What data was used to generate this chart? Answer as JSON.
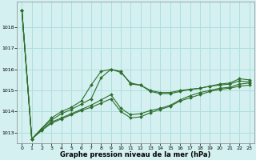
{
  "xlabel": "Graphe pression niveau de la mer (hPa)",
  "ylabel": "",
  "xlim": [
    -0.5,
    23.5
  ],
  "ylim": [
    1012.5,
    1019.2
  ],
  "yticks": [
    1013,
    1014,
    1015,
    1016,
    1017,
    1018
  ],
  "xticks": [
    0,
    1,
    2,
    3,
    4,
    5,
    6,
    7,
    8,
    9,
    10,
    11,
    12,
    13,
    14,
    15,
    16,
    17,
    18,
    19,
    20,
    21,
    22,
    23
  ],
  "bg_color": "#d4f0f0",
  "grid_color": "#b0dede",
  "line_color": "#2d6e2d",
  "series": [
    {
      "x": [
        0,
        1,
        2,
        3,
        4,
        5,
        6,
        7,
        8,
        9,
        10,
        11,
        12,
        13,
        14,
        15,
        16,
        17,
        18,
        19,
        20,
        21,
        22,
        23
      ],
      "y": [
        1018.8,
        1012.7,
        1013.2,
        1013.7,
        1014.0,
        1014.2,
        1014.5,
        1015.25,
        1015.9,
        1016.0,
        1015.9,
        1015.3,
        1015.25,
        1015.0,
        1014.9,
        1014.9,
        1015.0,
        1015.05,
        1015.1,
        1015.2,
        1015.3,
        1015.35,
        1015.55,
        1015.5
      ]
    },
    {
      "x": [
        0,
        1,
        2,
        3,
        4,
        5,
        6,
        7,
        8,
        9,
        10,
        11,
        12,
        13,
        14,
        15,
        16,
        17,
        18,
        19,
        20,
        21,
        22,
        23
      ],
      "y": [
        1018.8,
        1012.7,
        1013.2,
        1013.6,
        1013.9,
        1014.1,
        1014.35,
        1014.6,
        1015.6,
        1016.0,
        1015.85,
        1015.35,
        1015.25,
        1014.95,
        1014.85,
        1014.85,
        1014.95,
        1015.05,
        1015.1,
        1015.2,
        1015.25,
        1015.3,
        1015.45,
        1015.4
      ]
    },
    {
      "x": [
        0,
        1,
        2,
        3,
        4,
        5,
        6,
        7,
        8,
        9,
        10,
        11,
        12,
        13,
        14,
        15,
        16,
        17,
        18,
        19,
        20,
        21,
        22,
        23
      ],
      "y": [
        1018.8,
        1012.7,
        1013.15,
        1013.5,
        1013.7,
        1013.9,
        1014.1,
        1014.3,
        1014.55,
        1014.8,
        1014.15,
        1013.85,
        1013.9,
        1014.05,
        1014.15,
        1014.3,
        1014.55,
        1014.75,
        1014.9,
        1015.0,
        1015.1,
        1015.15,
        1015.3,
        1015.35
      ]
    },
    {
      "x": [
        0,
        1,
        2,
        3,
        4,
        5,
        6,
        7,
        8,
        9,
        10,
        11,
        12,
        13,
        14,
        15,
        16,
        17,
        18,
        19,
        20,
        21,
        22,
        23
      ],
      "y": [
        1018.8,
        1012.7,
        1013.1,
        1013.45,
        1013.65,
        1013.85,
        1014.05,
        1014.2,
        1014.4,
        1014.6,
        1014.0,
        1013.7,
        1013.75,
        1013.95,
        1014.1,
        1014.25,
        1014.5,
        1014.65,
        1014.8,
        1014.95,
        1015.05,
        1015.1,
        1015.2,
        1015.25
      ]
    }
  ]
}
